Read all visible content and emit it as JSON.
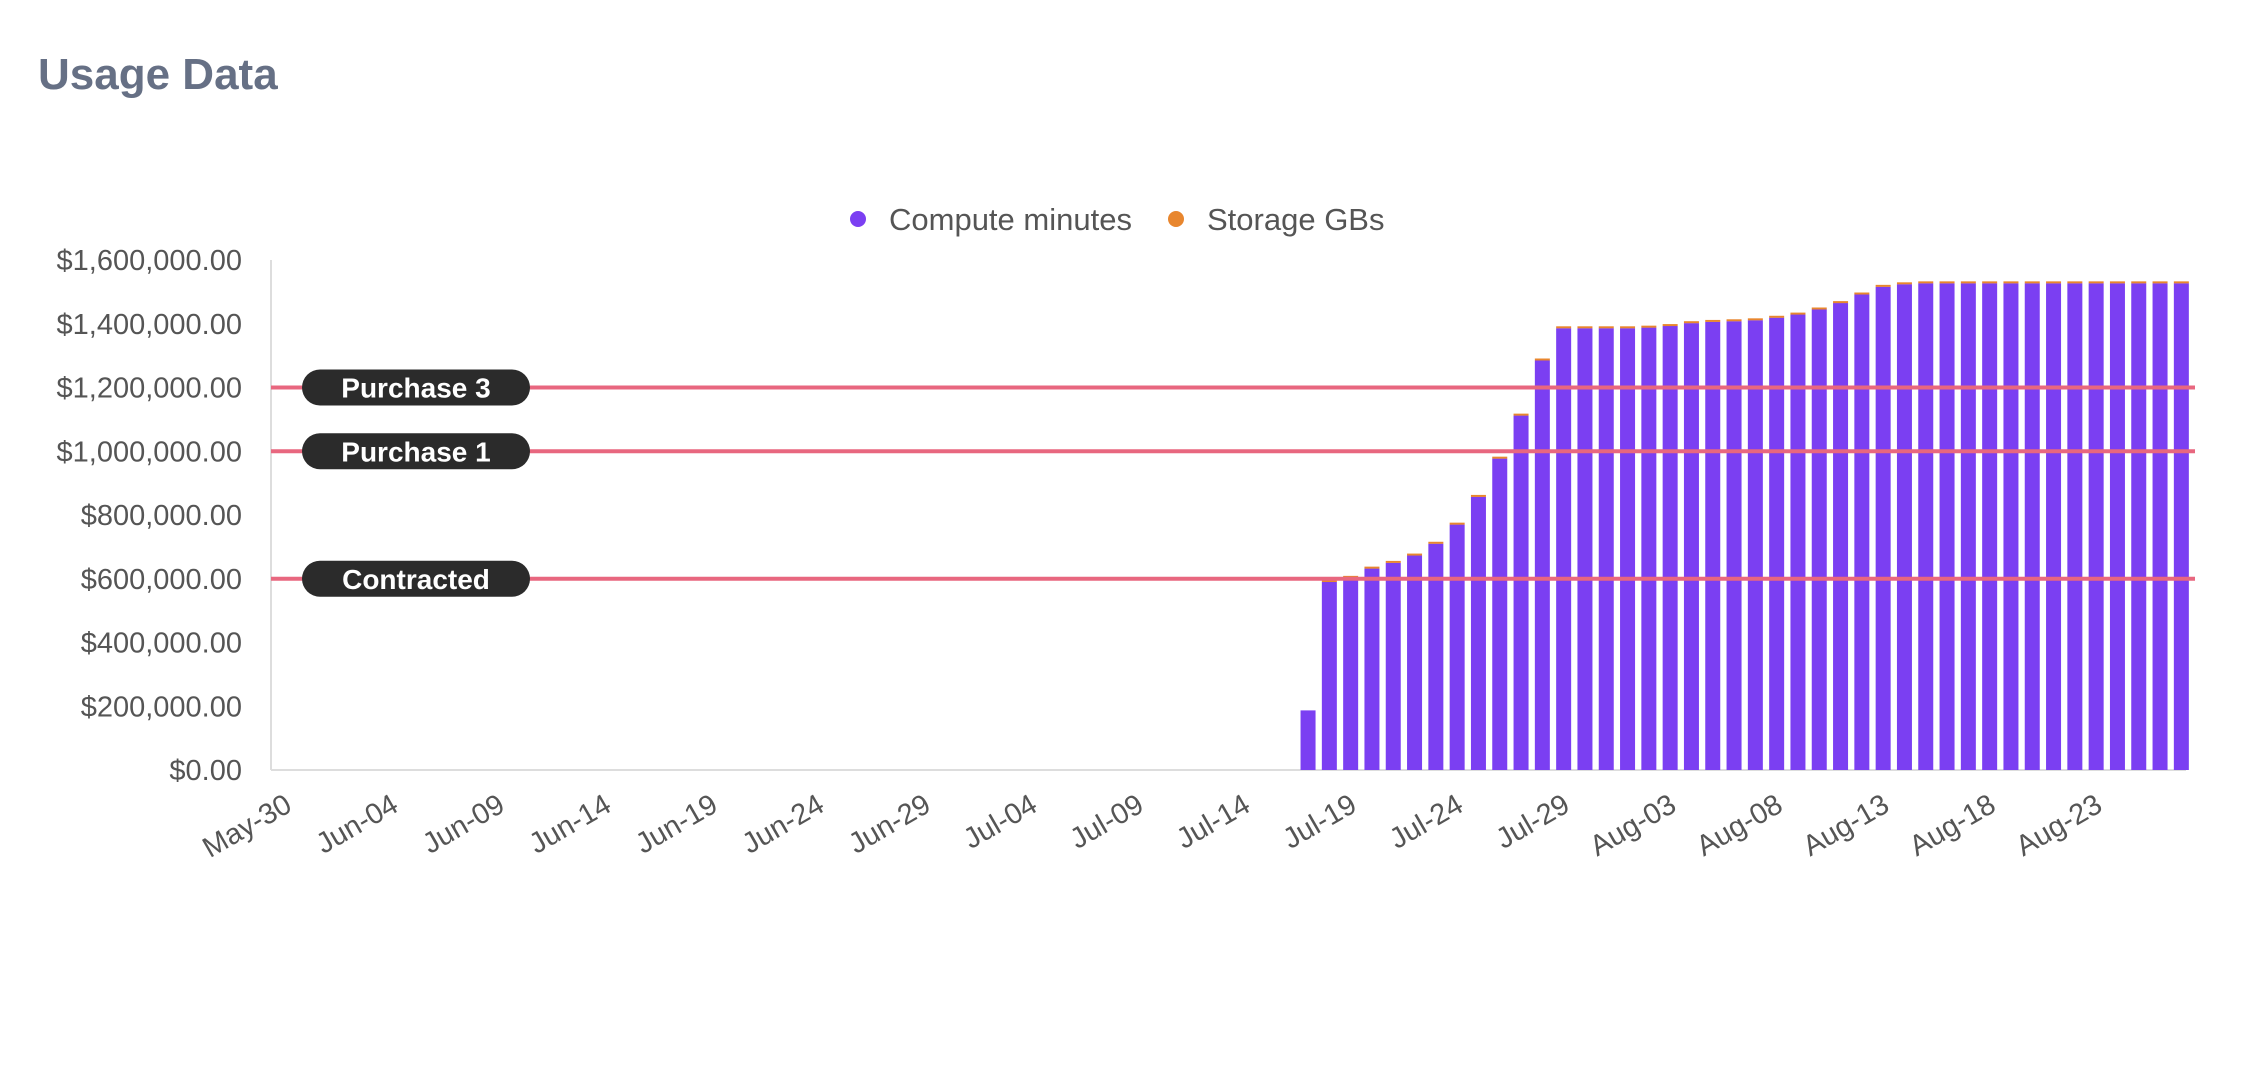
{
  "header": {
    "title": "Usage Data"
  },
  "chart_data": {
    "type": "bar",
    "stacked": true,
    "title": "",
    "xlabel": "",
    "ylabel": "",
    "legend_position": "top-center",
    "grid": false,
    "ylim": [
      0,
      1600000
    ],
    "yticks": [
      0,
      200000,
      400000,
      600000,
      800000,
      1000000,
      1200000,
      1400000,
      1600000
    ],
    "ytick_labels": [
      "$0.00",
      "$200,000.00",
      "$400,000.00",
      "$600,000.00",
      "$800,000.00",
      "$1,000,000.00",
      "$1,200,000.00",
      "$1,400,000.00",
      "$1,600,000.00"
    ],
    "xtick_labels": [
      "May-30",
      "Jun-04",
      "Jun-09",
      "Jun-14",
      "Jun-19",
      "Jun-24",
      "Jun-29",
      "Jul-04",
      "Jul-09",
      "Jul-14",
      "Jul-19",
      "Jul-24",
      "Jul-29",
      "Aug-03",
      "Aug-08",
      "Aug-13",
      "Aug-18",
      "Aug-23"
    ],
    "categories": [
      "May-30",
      "May-31",
      "Jun-01",
      "Jun-02",
      "Jun-03",
      "Jun-04",
      "Jun-05",
      "Jun-06",
      "Jun-07",
      "Jun-08",
      "Jun-09",
      "Jun-10",
      "Jun-11",
      "Jun-12",
      "Jun-13",
      "Jun-14",
      "Jun-15",
      "Jun-16",
      "Jun-17",
      "Jun-18",
      "Jun-19",
      "Jun-20",
      "Jun-21",
      "Jun-22",
      "Jun-23",
      "Jun-24",
      "Jun-25",
      "Jun-26",
      "Jun-27",
      "Jun-28",
      "Jun-29",
      "Jun-30",
      "Jul-01",
      "Jul-02",
      "Jul-03",
      "Jul-04",
      "Jul-05",
      "Jul-06",
      "Jul-07",
      "Jul-08",
      "Jul-09",
      "Jul-10",
      "Jul-11",
      "Jul-12",
      "Jul-13",
      "Jul-14",
      "Jul-15",
      "Jul-16",
      "Jul-17",
      "Jul-18",
      "Jul-19",
      "Jul-20",
      "Jul-21",
      "Jul-22",
      "Jul-23",
      "Jul-24",
      "Jul-25",
      "Jul-26",
      "Jul-27",
      "Jul-28",
      "Jul-29",
      "Jul-30",
      "Jul-31",
      "Aug-01",
      "Aug-02",
      "Aug-03",
      "Aug-04",
      "Aug-05",
      "Aug-06",
      "Aug-07",
      "Aug-08",
      "Aug-09",
      "Aug-10",
      "Aug-11",
      "Aug-12",
      "Aug-13",
      "Aug-14",
      "Aug-15",
      "Aug-16",
      "Aug-17",
      "Aug-18",
      "Aug-19",
      "Aug-20",
      "Aug-21",
      "Aug-22",
      "Aug-23",
      "Aug-24",
      "Aug-25",
      "Aug-26",
      "Aug-27"
    ],
    "series": [
      {
        "name": "Compute minutes",
        "color": "#7b3ff2",
        "values": [
          0,
          0,
          0,
          0,
          0,
          0,
          0,
          0,
          0,
          0,
          0,
          0,
          0,
          0,
          0,
          0,
          0,
          0,
          0,
          0,
          0,
          0,
          0,
          0,
          0,
          0,
          0,
          0,
          0,
          0,
          0,
          0,
          0,
          0,
          0,
          0,
          0,
          0,
          0,
          0,
          0,
          0,
          0,
          0,
          0,
          0,
          0,
          0,
          187000,
          590000,
          603000,
          632000,
          650000,
          673000,
          710000,
          770000,
          857000,
          977000,
          1112000,
          1285000,
          1386000,
          1386000,
          1386000,
          1386000,
          1388000,
          1393000,
          1402000,
          1406000,
          1408000,
          1411000,
          1419000,
          1429000,
          1445000,
          1465000,
          1492000,
          1516000,
          1524000,
          1527000,
          1527000,
          1527000,
          1527000,
          1527000,
          1527000,
          1527000,
          1527000,
          1527000,
          1527000,
          1527000,
          1527000,
          1527000
        ]
      },
      {
        "name": "Storage GBs",
        "color": "#e8862e",
        "values": [
          0,
          0,
          0,
          0,
          0,
          0,
          0,
          0,
          0,
          0,
          0,
          0,
          0,
          0,
          0,
          0,
          0,
          0,
          0,
          0,
          0,
          0,
          0,
          0,
          0,
          0,
          0,
          0,
          0,
          0,
          0,
          0,
          0,
          0,
          0,
          0,
          0,
          0,
          0,
          0,
          0,
          0,
          0,
          0,
          0,
          0,
          0,
          0,
          0,
          6000,
          6000,
          6000,
          6000,
          6000,
          6000,
          6000,
          6000,
          6000,
          6000,
          6000,
          6000,
          6000,
          6000,
          6000,
          6000,
          6000,
          6000,
          6000,
          6000,
          6000,
          6000,
          6000,
          6000,
          6000,
          6000,
          6000,
          6000,
          6000,
          6000,
          6000,
          6000,
          6000,
          6000,
          6000,
          6000,
          6000,
          6000,
          6000,
          6000,
          6000
        ]
      }
    ],
    "reference_lines": [
      {
        "label": "Purchase 3",
        "value": 1200000,
        "color": "#e8677f"
      },
      {
        "label": "Purchase 1",
        "value": 1000000,
        "color": "#e8677f"
      },
      {
        "label": "Contracted",
        "value": 600000,
        "color": "#e8677f"
      }
    ],
    "label_style": {
      "background": "#2b2b2b",
      "text_color": "#ffffff"
    },
    "axis_color": "#dddddd"
  }
}
